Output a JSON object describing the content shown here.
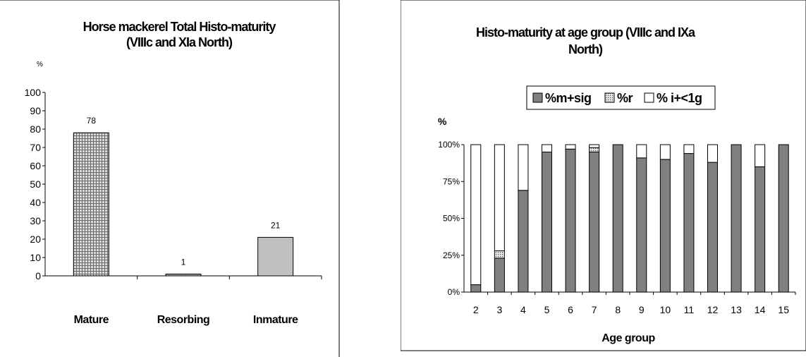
{
  "chart_data": [
    {
      "type": "bar",
      "title_line1": "Horse mackerel Total Histo-maturity",
      "title_line2": "(VIIIc and XIa North)",
      "unit_label": "%",
      "categories": [
        "Mature",
        "Resorbing",
        "Inmature"
      ],
      "values": [
        78,
        1,
        21
      ],
      "data_labels": [
        "78",
        "1",
        "21"
      ],
      "ylim": [
        0,
        100
      ],
      "y_ticks": [
        "0",
        "10",
        "20",
        "30",
        "40",
        "50",
        "60",
        "70",
        "80",
        "90",
        "100"
      ],
      "grid": false,
      "bar_fills": [
        "pattern-mature",
        "pattern-resorbing",
        "#c0c0c0"
      ]
    },
    {
      "type": "bar",
      "stacked": "percent",
      "title_line1": "Histo-maturity at age group (VIIIc and IXa",
      "title_line2": "North)",
      "unit_label": "%",
      "xlabel": "Age group",
      "legend_placement": "top",
      "categories": [
        "2",
        "3",
        "4",
        "5",
        "6",
        "7",
        "8",
        "9",
        "10",
        "11",
        "12",
        "13",
        "14",
        "15"
      ],
      "series": [
        {
          "name": "%m+sig",
          "color": "#808080",
          "values": [
            5,
            23,
            69,
            95,
            97,
            95,
            100,
            91,
            90,
            94,
            88,
            100,
            85,
            100
          ]
        },
        {
          "name": "%r",
          "color": "pattern-dots",
          "values": [
            0,
            5,
            0,
            0,
            0,
            3,
            0,
            0,
            0,
            0,
            0,
            0,
            0,
            0
          ]
        },
        {
          "name": "% i+<1g",
          "color": "#ffffff",
          "values": [
            95,
            72,
            31,
            5,
            3,
            2,
            0,
            9,
            10,
            6,
            12,
            0,
            15,
            0
          ]
        }
      ],
      "ylim": [
        0,
        100
      ],
      "y_ticks": [
        "0%",
        "25%",
        "50%",
        "75%",
        "100%"
      ],
      "grid": false
    }
  ]
}
